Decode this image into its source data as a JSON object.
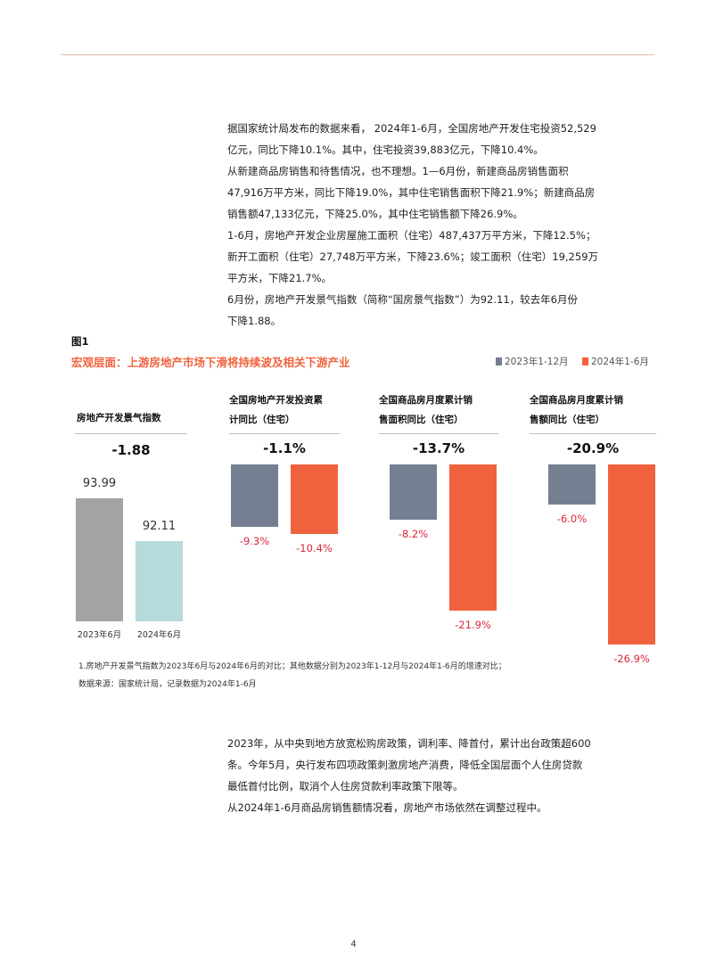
{
  "paragraphs_top": [
    [
      "据国家统计局发布的数据来看， 2024年1-6月，全国房地产开发住宅投资52,529",
      "亿元，同比下降10.1%。其中，住宅投资39,883亿元，下降10.4%。"
    ],
    [
      "从新建商品房销售和待售情况，也不理想。1—6月份，新建商品房销售面积",
      "47,916万平方米，同比下降19.0%，其中住宅销售面积下降21.9%；新建商品房",
      "销售额47,133亿元，下降25.0%，其中住宅销售额下降26.9%。"
    ],
    [
      "1-6月，房地产开发企业房屋施工面积（住宅）487,437万平方米，下降12.5%；",
      "新开工面积（住宅）27,748万平方米，下降23.6%；竣工面积（住宅）19,259万",
      "平方米，下降21.7%。"
    ],
    [
      "6月份，房地产开发景气指数（简称“国房景气指数”）为92.11，较去年6月份",
      "下降1.88。"
    ]
  ],
  "figure": {
    "label": "图1",
    "title": "宏观层面：上游房地产市场下滑将持续波及相关下游产业",
    "legend": [
      {
        "name": "2023年1-12月",
        "color": "#748091"
      },
      {
        "name": "2024年1-6月",
        "color": "#f0623e"
      }
    ]
  },
  "chart_data": [
    {
      "type": "bar",
      "title": "房地产开发景气指数",
      "headline": "-1.88",
      "categories": [
        "2023年6月",
        "2024年6月"
      ],
      "values": [
        93.99,
        92.11
      ],
      "value_labels": [
        "93.99",
        "92.11"
      ],
      "colors": [
        "#a3a3a3",
        "#b7dadc"
      ]
    },
    {
      "type": "bar",
      "title": "全国房地产开发投资累计同比（住宅）",
      "headline": "-1.1%",
      "series": [
        {
          "name": "2023年1-12月",
          "values": [
            -9.3
          ]
        },
        {
          "name": "2024年1-6月",
          "values": [
            -10.4
          ]
        }
      ],
      "value_labels": [
        "-9.3%",
        "-10.4%"
      ]
    },
    {
      "type": "bar",
      "title": "全国商品房月度累计销售面积同比（住宅）",
      "headline": "-13.7%",
      "series": [
        {
          "name": "2023年1-12月",
          "values": [
            -8.2
          ]
        },
        {
          "name": "2024年1-6月",
          "values": [
            -21.9
          ]
        }
      ],
      "value_labels": [
        "-8.2%",
        "-21.9%"
      ]
    },
    {
      "type": "bar",
      "title": "全国商品房月度累计销售额同比（住宅）",
      "headline": "-20.9%",
      "series": [
        {
          "name": "2023年1-12月",
          "values": [
            -6.0
          ]
        },
        {
          "name": "2024年1-6月",
          "values": [
            -26.9
          ]
        }
      ],
      "value_labels": [
        "-6.0%",
        "-26.9%"
      ]
    }
  ],
  "panel_titles": [
    [
      "房地产开发景气指数"
    ],
    [
      "全国房地产开发投资累",
      "计同比（住宅）"
    ],
    [
      "全国商品房月度累计销",
      "售面积同比（住宅）"
    ],
    [
      "全国商品房月度累计销",
      "售额同比（住宅）"
    ]
  ],
  "notes": [
    "1.房地产开发景气指数为2023年6月与2024年6月的对比；其他数据分别为2023年1-12月与2024年1-6月的增速对比；",
    "数据来源：国家统计局，记录数据为2024年1-6月"
  ],
  "paragraphs_bottom": [
    [
      "2023年，从中央到地方放宽松购房政策，调利率、降首付，累计出台政策超600",
      "条。今年5月，央行发布四项政策刺激房地产消费，降低全国层面个人住房贷款",
      "最低首付比例，取消个人住房贷款利率政策下限等。"
    ],
    [
      "从2024年1-6月商品房销售额情况看，房地产市场依然在调整过程中。"
    ]
  ],
  "page_number": "4"
}
